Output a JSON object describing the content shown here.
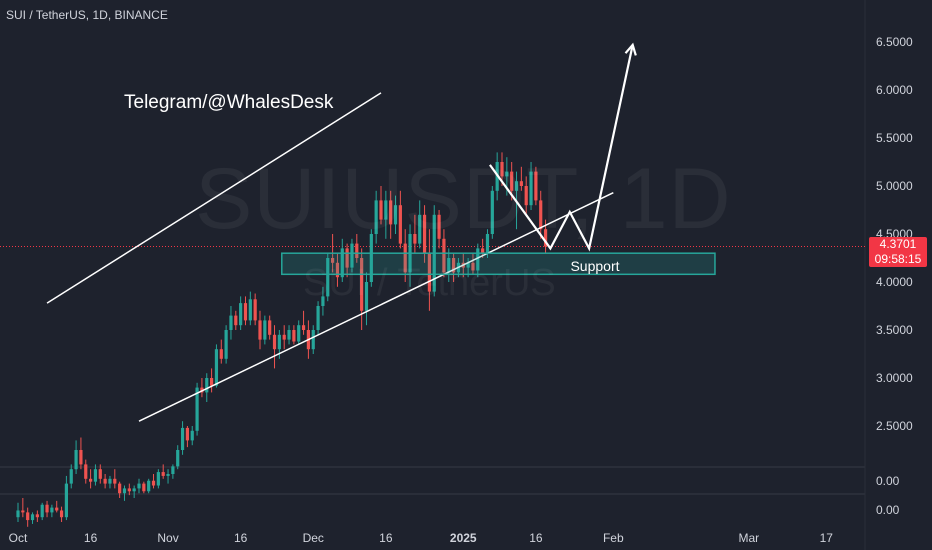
{
  "header": {
    "title": "SUI / TetherUS, 1D, BINANCE"
  },
  "watermark": {
    "main": "SUIUSDT, 1D",
    "sub": "SUI / TetherUS"
  },
  "annotation": {
    "text": "Telegram/@WhalesDesk",
    "support_label": "Support"
  },
  "price_tag": {
    "price": "4.3701",
    "countdown": "09:58:15"
  },
  "colors": {
    "background": "#1e222d",
    "up": "#26a69a",
    "down": "#ef5350",
    "tag": "#f23645",
    "text": "#d1d4dc",
    "annotation": "#ffffff"
  },
  "chart_data": {
    "type": "candlestick",
    "symbol": "SUIUSDT",
    "interval": "1D",
    "y_ticks": [
      "6.5000",
      "6.0000",
      "5.5000",
      "5.0000",
      "4.5000",
      "4.0000",
      "3.5000",
      "3.0000",
      "2.5000"
    ],
    "y_values": [
      6.5,
      6.0,
      5.5,
      5.0,
      4.5,
      4.0,
      3.5,
      3.0,
      2.5
    ],
    "x_ticks": [
      {
        "label": "Oct",
        "day": 0
      },
      {
        "label": "16",
        "day": 15
      },
      {
        "label": "Nov",
        "day": 31
      },
      {
        "label": "16",
        "day": 46
      },
      {
        "label": "Dec",
        "day": 61
      },
      {
        "label": "16",
        "day": 76
      },
      {
        "label": "2025",
        "day": 92,
        "bold": true
      },
      {
        "label": "16",
        "day": 107
      },
      {
        "label": "Feb",
        "day": 123
      },
      {
        "label": "Mar",
        "day": 151
      },
      {
        "label": "17",
        "day": 167
      }
    ],
    "sub_pane_ticks": [
      "0.00",
      "0.00"
    ],
    "candles": [
      [
        1.55,
        1.7,
        1.5,
        1.62
      ],
      [
        1.62,
        1.75,
        1.55,
        1.6
      ],
      [
        1.6,
        1.65,
        1.45,
        1.52
      ],
      [
        1.52,
        1.6,
        1.48,
        1.58
      ],
      [
        1.58,
        1.62,
        1.5,
        1.55
      ],
      [
        1.55,
        1.7,
        1.52,
        1.68
      ],
      [
        1.68,
        1.72,
        1.55,
        1.6
      ],
      [
        1.6,
        1.68,
        1.55,
        1.65
      ],
      [
        1.65,
        1.72,
        1.6,
        1.62
      ],
      [
        1.62,
        1.66,
        1.5,
        1.55
      ],
      [
        1.55,
        1.98,
        1.52,
        1.9
      ],
      [
        1.9,
        2.1,
        1.85,
        2.05
      ],
      [
        2.05,
        2.35,
        2.0,
        2.25
      ],
      [
        2.25,
        2.38,
        2.05,
        2.1
      ],
      [
        2.1,
        2.15,
        1.9,
        1.95
      ],
      [
        1.95,
        2.05,
        1.85,
        1.92
      ],
      [
        1.92,
        2.1,
        1.88,
        2.05
      ],
      [
        2.05,
        2.1,
        1.9,
        1.95
      ],
      [
        1.95,
        2.0,
        1.85,
        1.9
      ],
      [
        1.9,
        1.98,
        1.85,
        1.95
      ],
      [
        1.95,
        2.05,
        1.85,
        1.9
      ],
      [
        1.9,
        1.92,
        1.75,
        1.8
      ],
      [
        1.8,
        1.88,
        1.72,
        1.85
      ],
      [
        1.85,
        1.9,
        1.78,
        1.82
      ],
      [
        1.82,
        1.88,
        1.75,
        1.85
      ],
      [
        1.85,
        1.95,
        1.8,
        1.9
      ],
      [
        1.9,
        1.92,
        1.8,
        1.82
      ],
      [
        1.82,
        1.95,
        1.8,
        1.93
      ],
      [
        1.93,
        2.0,
        1.85,
        1.88
      ],
      [
        1.88,
        2.05,
        1.85,
        2.02
      ],
      [
        2.02,
        2.1,
        1.95,
        1.98
      ],
      [
        1.98,
        2.05,
        1.9,
        2.0
      ],
      [
        2.0,
        2.1,
        1.95,
        2.08
      ],
      [
        2.08,
        2.3,
        2.05,
        2.25
      ],
      [
        2.25,
        2.55,
        2.2,
        2.48
      ],
      [
        2.48,
        2.5,
        2.28,
        2.35
      ],
      [
        2.35,
        2.5,
        2.3,
        2.45
      ],
      [
        2.45,
        2.95,
        2.4,
        2.9
      ],
      [
        2.9,
        3.0,
        2.8,
        2.85
      ],
      [
        2.85,
        3.05,
        2.75,
        3.0
      ],
      [
        3.0,
        3.1,
        2.85,
        2.92
      ],
      [
        2.92,
        3.35,
        2.9,
        3.3
      ],
      [
        3.3,
        3.4,
        3.15,
        3.2
      ],
      [
        3.2,
        3.55,
        3.15,
        3.5
      ],
      [
        3.5,
        3.75,
        3.4,
        3.65
      ],
      [
        3.65,
        3.7,
        3.5,
        3.55
      ],
      [
        3.55,
        3.85,
        3.5,
        3.78
      ],
      [
        3.78,
        3.85,
        3.55,
        3.6
      ],
      [
        3.6,
        3.9,
        3.55,
        3.82
      ],
      [
        3.82,
        3.88,
        3.55,
        3.6
      ],
      [
        3.6,
        3.7,
        3.3,
        3.4
      ],
      [
        3.4,
        3.65,
        3.35,
        3.6
      ],
      [
        3.6,
        3.65,
        3.4,
        3.45
      ],
      [
        3.45,
        3.55,
        3.1,
        3.3
      ],
      [
        3.3,
        3.5,
        3.2,
        3.45
      ],
      [
        3.45,
        3.55,
        3.3,
        3.4
      ],
      [
        3.4,
        3.55,
        3.35,
        3.5
      ],
      [
        3.5,
        3.55,
        3.35,
        3.38
      ],
      [
        3.38,
        3.6,
        3.35,
        3.55
      ],
      [
        3.55,
        3.7,
        3.45,
        3.5
      ],
      [
        3.5,
        3.6,
        3.2,
        3.3
      ],
      [
        3.3,
        3.55,
        3.25,
        3.5
      ],
      [
        3.5,
        3.8,
        3.45,
        3.75
      ],
      [
        3.75,
        3.95,
        3.65,
        3.85
      ],
      [
        3.85,
        4.3,
        3.8,
        4.25
      ],
      [
        4.25,
        4.5,
        4.1,
        4.2
      ],
      [
        4.2,
        4.3,
        3.95,
        4.05
      ],
      [
        4.05,
        4.45,
        4.0,
        4.35
      ],
      [
        4.35,
        4.4,
        4.05,
        4.15
      ],
      [
        4.15,
        4.45,
        4.1,
        4.4
      ],
      [
        4.4,
        4.5,
        4.2,
        4.25
      ],
      [
        4.25,
        4.35,
        3.5,
        3.7
      ],
      [
        3.7,
        4.1,
        3.55,
        4.0
      ],
      [
        4.0,
        4.55,
        3.95,
        4.5
      ],
      [
        4.5,
        4.95,
        4.4,
        4.85
      ],
      [
        4.85,
        5.0,
        4.6,
        4.65
      ],
      [
        4.65,
        4.95,
        4.45,
        4.85
      ],
      [
        4.85,
        4.95,
        4.45,
        4.6
      ],
      [
        4.6,
        4.9,
        4.5,
        4.8
      ],
      [
        4.8,
        4.95,
        4.35,
        4.4
      ],
      [
        4.4,
        4.55,
        4.0,
        4.1
      ],
      [
        4.1,
        4.6,
        3.95,
        4.5
      ],
      [
        4.5,
        4.7,
        4.3,
        4.4
      ],
      [
        4.4,
        4.85,
        4.35,
        4.7
      ],
      [
        4.7,
        4.8,
        4.2,
        4.3
      ],
      [
        4.3,
        4.55,
        3.7,
        3.9
      ],
      [
        3.9,
        4.8,
        3.85,
        4.7
      ],
      [
        4.7,
        4.75,
        4.35,
        4.45
      ],
      [
        4.45,
        4.55,
        4.05,
        4.1
      ],
      [
        4.1,
        4.35,
        4.0,
        4.25
      ],
      [
        4.25,
        4.3,
        4.0,
        4.1
      ],
      [
        4.1,
        4.25,
        4.05,
        4.2
      ],
      [
        4.2,
        4.3,
        4.05,
        4.15
      ],
      [
        4.15,
        4.25,
        4.05,
        4.2
      ],
      [
        4.2,
        4.3,
        4.08,
        4.12
      ],
      [
        4.12,
        4.4,
        4.05,
        4.35
      ],
      [
        4.35,
        4.45,
        4.25,
        4.3
      ],
      [
        4.3,
        4.55,
        4.25,
        4.5
      ],
      [
        4.5,
        5.0,
        4.45,
        4.95
      ],
      [
        4.95,
        5.35,
        4.85,
        5.25
      ],
      [
        5.25,
        5.35,
        5.0,
        5.1
      ],
      [
        5.1,
        5.3,
        4.9,
        5.15
      ],
      [
        5.15,
        5.25,
        4.85,
        4.95
      ],
      [
        4.95,
        5.15,
        4.55,
        5.05
      ],
      [
        5.05,
        5.2,
        4.95,
        5.0
      ],
      [
        5.0,
        5.1,
        4.7,
        4.8
      ],
      [
        4.8,
        5.25,
        4.75,
        5.15
      ],
      [
        5.15,
        5.2,
        4.8,
        4.85
      ],
      [
        4.85,
        4.95,
        4.45,
        4.55
      ],
      [
        4.55,
        4.65,
        4.3,
        4.37
      ]
    ],
    "annotations": {
      "channel_upper": [
        [
          6,
          3.78
        ],
        [
          75,
          5.97
        ]
      ],
      "channel_lower": [
        [
          25,
          2.55
        ],
        [
          123,
          4.93
        ]
      ],
      "support_zone": {
        "x1": 54.5,
        "x2": 144,
        "y_low": 4.08,
        "y_high": 4.3
      },
      "projection_path": [
        [
          97.5,
          5.22
        ],
        [
          110,
          4.35
        ],
        [
          114,
          4.73
        ],
        [
          118,
          4.35
        ],
        [
          127,
          6.47
        ]
      ]
    },
    "last_price": 4.3701
  }
}
